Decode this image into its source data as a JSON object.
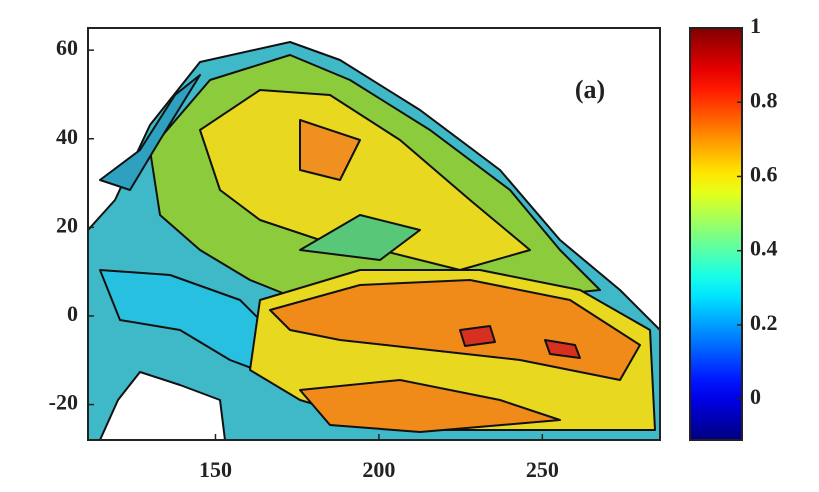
{
  "chart_data": {
    "type": "contour",
    "annotation": "(a)",
    "xlim": [
      111,
      286
    ],
    "xticks": [
      150,
      200,
      250
    ],
    "ylim": [
      -28,
      65
    ],
    "yticks": [
      60,
      40,
      20,
      0,
      -20
    ],
    "colormap": "jet",
    "clim": [
      -0.11,
      1
    ],
    "cticks": [
      1,
      0.8,
      0.6,
      0.4,
      0.2,
      0
    ]
  }
}
